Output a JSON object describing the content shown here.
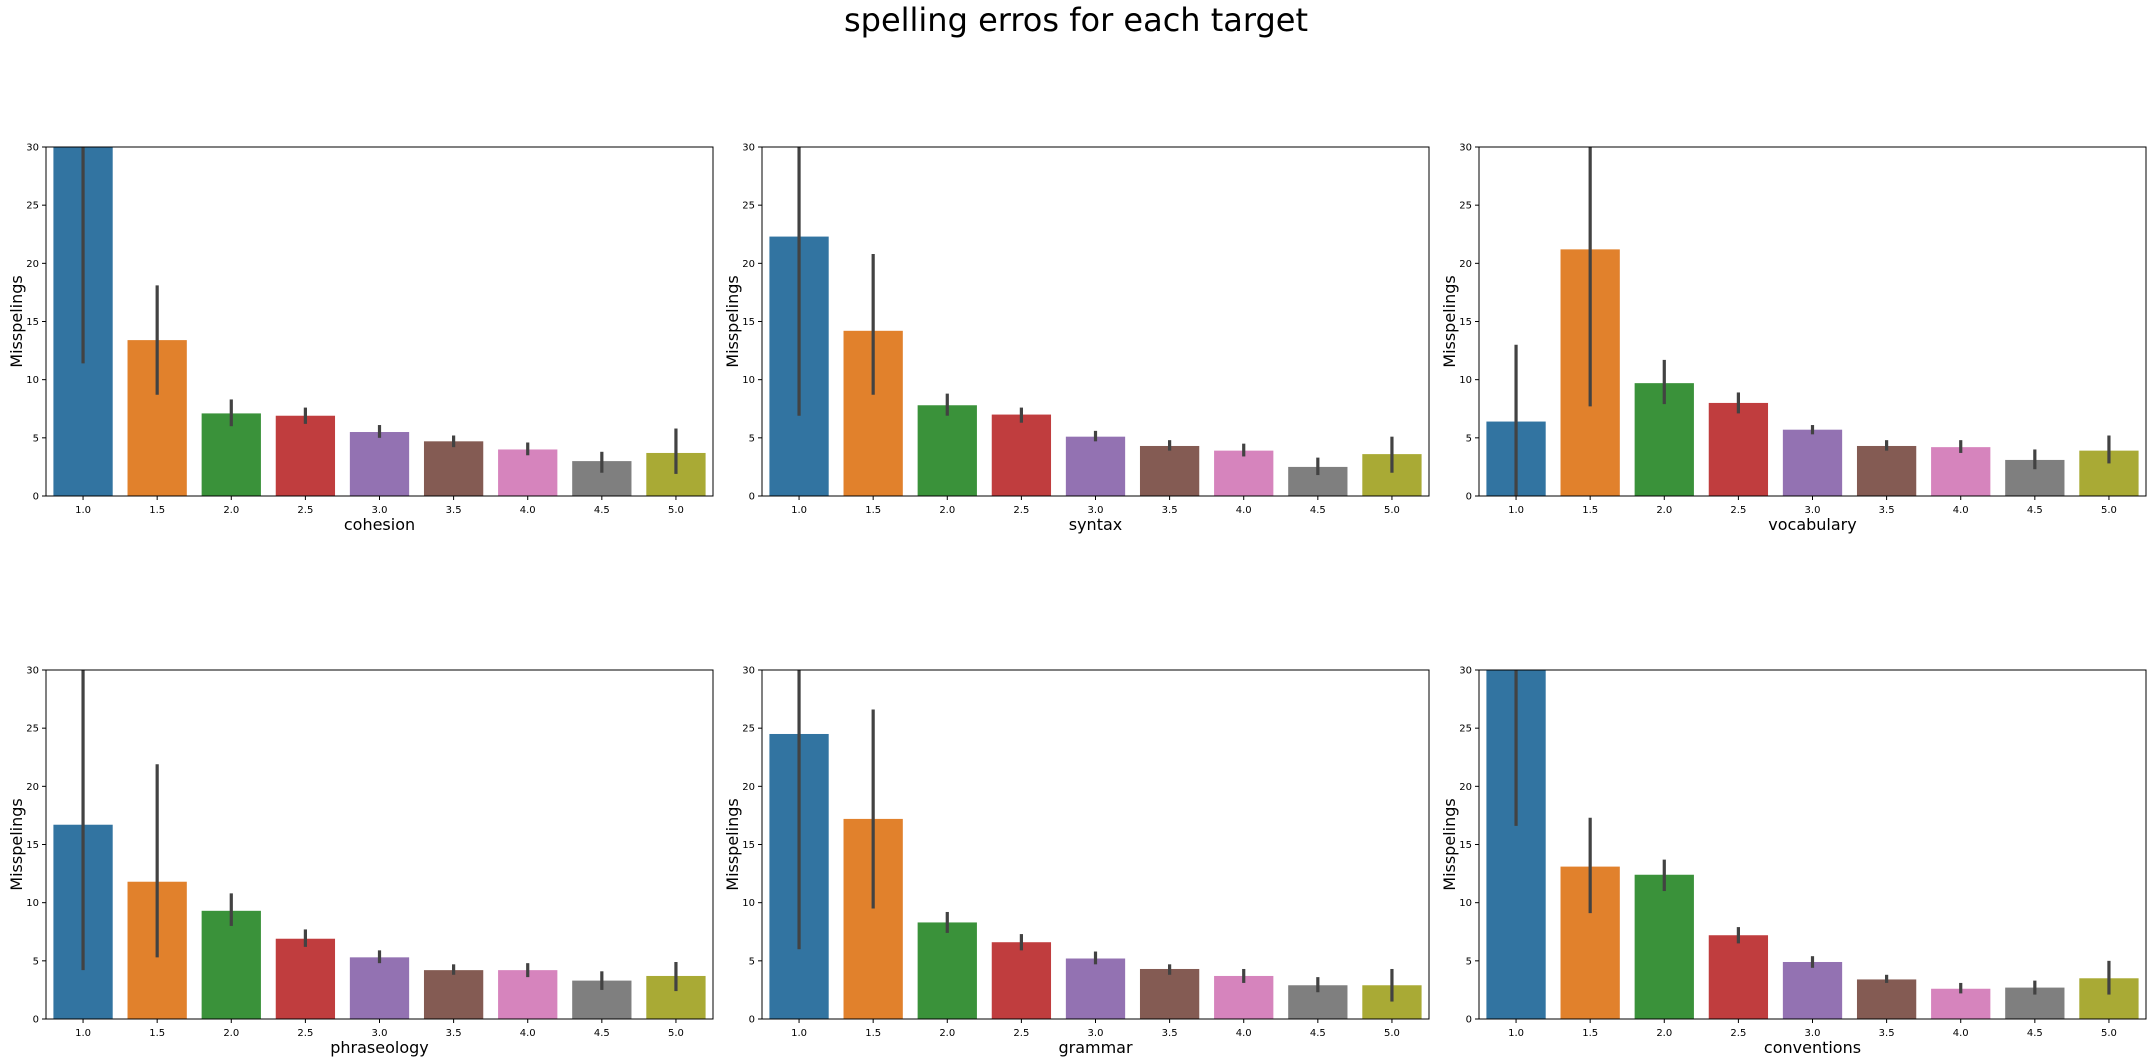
{
  "figure_title": "spelling erros for each target",
  "palette": [
    "#3274a1",
    "#e1812c",
    "#3a923a",
    "#c03d3e",
    "#9372b2",
    "#845b53",
    "#d684bd",
    "#7f7f7f",
    "#a9aa35"
  ],
  "chart_data": [
    {
      "type": "bar",
      "xlabel": "cohesion",
      "ylabel": "Misspelings",
      "categories": [
        "1.0",
        "1.5",
        "2.0",
        "2.5",
        "3.0",
        "3.5",
        "4.0",
        "4.5",
        "5.0"
      ],
      "values": [
        31.0,
        13.4,
        7.1,
        6.9,
        5.5,
        4.7,
        4.0,
        3.0,
        3.7
      ],
      "error_low": [
        11.4,
        8.7,
        6.0,
        6.2,
        5.0,
        4.2,
        3.5,
        2.0,
        1.9
      ],
      "error_high": [
        30.0,
        18.1,
        8.3,
        7.6,
        6.1,
        5.2,
        4.6,
        3.8,
        5.8
      ],
      "ylim": [
        0,
        30
      ],
      "yticks": [
        0,
        5,
        10,
        15,
        20,
        25,
        30
      ]
    },
    {
      "type": "bar",
      "xlabel": "syntax",
      "ylabel": "Misspelings",
      "categories": [
        "1.0",
        "1.5",
        "2.0",
        "2.5",
        "3.0",
        "3.5",
        "4.0",
        "4.5",
        "5.0"
      ],
      "values": [
        22.3,
        14.2,
        7.8,
        7.0,
        5.1,
        4.3,
        3.9,
        2.5,
        3.6
      ],
      "error_low": [
        6.9,
        8.7,
        6.9,
        6.3,
        4.7,
        3.9,
        3.4,
        1.8,
        2.0
      ],
      "error_high": [
        30.0,
        20.8,
        8.8,
        7.6,
        5.6,
        4.8,
        4.5,
        3.3,
        5.1
      ],
      "ylim": [
        0,
        30
      ],
      "yticks": [
        0,
        5,
        10,
        15,
        20,
        25,
        30
      ]
    },
    {
      "type": "bar",
      "xlabel": "vocabulary",
      "ylabel": "Misspelings",
      "categories": [
        "1.0",
        "1.5",
        "2.0",
        "2.5",
        "3.0",
        "3.5",
        "4.0",
        "4.5",
        "5.0"
      ],
      "values": [
        6.4,
        21.2,
        9.7,
        8.0,
        5.7,
        4.3,
        4.2,
        3.1,
        3.9
      ],
      "error_low": [
        0.0,
        7.7,
        7.9,
        7.1,
        5.3,
        3.9,
        3.7,
        2.3,
        2.8
      ],
      "error_high": [
        13.0,
        30.0,
        11.7,
        8.9,
        6.1,
        4.8,
        4.8,
        4.0,
        5.2
      ],
      "ylim": [
        0,
        30
      ],
      "yticks": [
        0,
        5,
        10,
        15,
        20,
        25,
        30
      ]
    },
    {
      "type": "bar",
      "xlabel": "phraseology",
      "ylabel": "Misspelings",
      "categories": [
        "1.0",
        "1.5",
        "2.0",
        "2.5",
        "3.0",
        "3.5",
        "4.0",
        "4.5",
        "5.0"
      ],
      "values": [
        16.7,
        11.8,
        9.3,
        6.9,
        5.3,
        4.2,
        4.2,
        3.3,
        3.7
      ],
      "error_low": [
        4.2,
        5.3,
        8.0,
        6.2,
        4.8,
        3.8,
        3.6,
        2.5,
        2.4
      ],
      "error_high": [
        30.0,
        21.9,
        10.8,
        7.7,
        5.9,
        4.7,
        4.8,
        4.1,
        4.9
      ],
      "ylim": [
        0,
        30
      ],
      "yticks": [
        0,
        5,
        10,
        15,
        20,
        25,
        30
      ]
    },
    {
      "type": "bar",
      "xlabel": "grammar",
      "ylabel": "Misspelings",
      "categories": [
        "1.0",
        "1.5",
        "2.0",
        "2.5",
        "3.0",
        "3.5",
        "4.0",
        "4.5",
        "5.0"
      ],
      "values": [
        24.5,
        17.2,
        8.3,
        6.6,
        5.2,
        4.3,
        3.7,
        2.9,
        2.9
      ],
      "error_low": [
        6.0,
        9.5,
        7.4,
        5.9,
        4.7,
        3.8,
        3.1,
        2.3,
        1.5
      ],
      "error_high": [
        30.0,
        26.6,
        9.2,
        7.3,
        5.8,
        4.7,
        4.3,
        3.6,
        4.3
      ],
      "ylim": [
        0,
        30
      ],
      "yticks": [
        0,
        5,
        10,
        15,
        20,
        25,
        30
      ]
    },
    {
      "type": "bar",
      "xlabel": "conventions",
      "ylabel": "Misspelings",
      "categories": [
        "1.0",
        "1.5",
        "2.0",
        "2.5",
        "3.0",
        "3.5",
        "4.0",
        "4.5",
        "5.0"
      ],
      "values": [
        31.0,
        13.1,
        12.4,
        7.2,
        4.9,
        3.4,
        2.6,
        2.7,
        3.5
      ],
      "error_low": [
        16.6,
        9.1,
        11.0,
        6.5,
        4.4,
        3.1,
        2.2,
        2.1,
        2.1
      ],
      "error_high": [
        30.0,
        17.3,
        13.7,
        7.9,
        5.4,
        3.8,
        3.1,
        3.3,
        5.0
      ],
      "ylim": [
        0,
        30
      ],
      "yticks": [
        0,
        5,
        10,
        15,
        20,
        25,
        30
      ]
    }
  ]
}
